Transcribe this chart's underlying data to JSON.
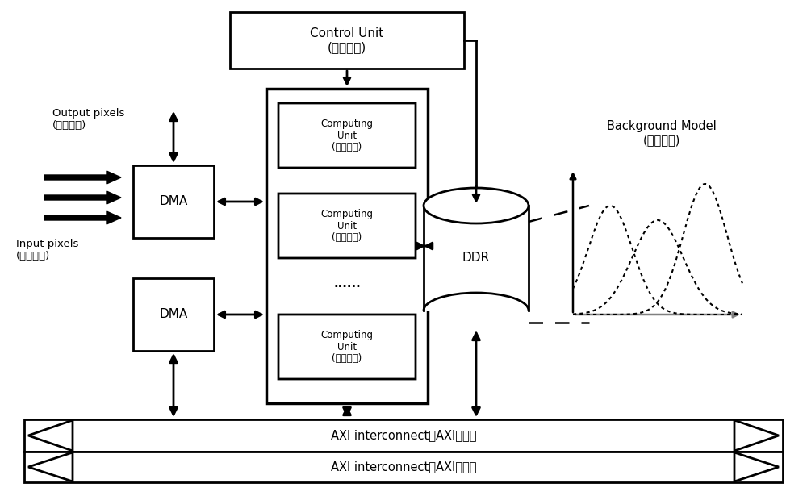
{
  "bg_color": "#ffffff",
  "line_color": "#000000",
  "ctrl_label": "Control Unit\n(控制单位)",
  "dma_label": "DMA",
  "ddr_label": "DDR",
  "cu_label": "Computing\nUnit\n(计算单元)",
  "dots_label": "······",
  "axi_label": "AXI interconnect（AXI互联）",
  "bg_model_label": "Background Model\n(背景模型)",
  "output_label": "Output pixels\n(输出像素)",
  "input_label": "Input pixels\n(输入像素)",
  "figsize": [
    10.0,
    6.15
  ],
  "dpi": 100
}
